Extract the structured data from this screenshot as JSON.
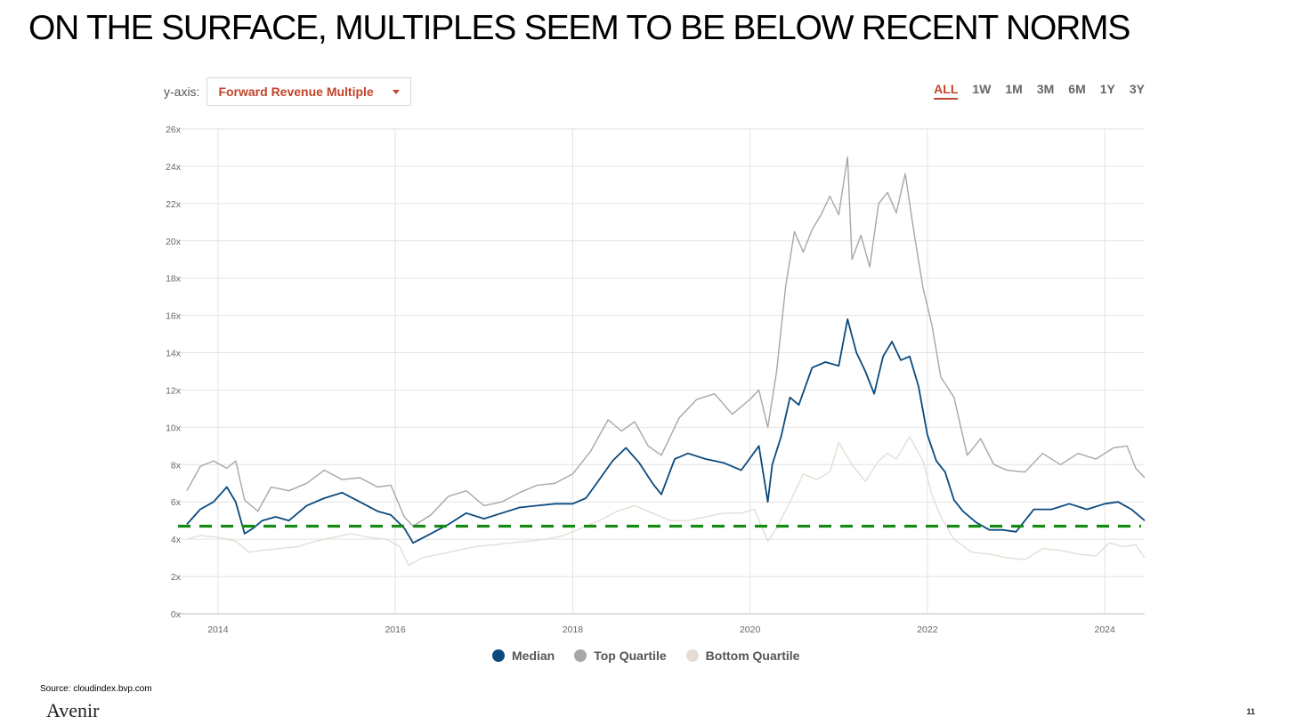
{
  "slide": {
    "title": "ON THE SURFACE, MULTIPLES SEEM TO BE BELOW RECENT NORMS",
    "source": "Source: cloudindex.bvp.com",
    "brand": "Avenir",
    "page_number": "11"
  },
  "controls": {
    "yaxis_label": "y-axis:",
    "dropdown_value": "Forward Revenue Multiple",
    "ranges": [
      "ALL",
      "1W",
      "1M",
      "3M",
      "6M",
      "1Y",
      "3Y"
    ],
    "active_range": "ALL"
  },
  "colors": {
    "median": "#0b4a7e",
    "top": "#a7a7a7",
    "bottom": "#e5ddd4",
    "reference": "#148c14",
    "grid": "#e2e2e2",
    "accent": "#c0452b"
  },
  "chart_data": {
    "type": "line",
    "title": "",
    "xlabel": "",
    "ylabel": "Forward Revenue Multiple",
    "xlim": [
      2013.65,
      2024.45
    ],
    "ylim": [
      0,
      26
    ],
    "y_ticks": [
      0,
      2,
      4,
      6,
      8,
      10,
      12,
      14,
      16,
      18,
      20,
      22,
      24,
      26
    ],
    "y_tick_labels": [
      "0x",
      "2x",
      "4x",
      "6x",
      "8x",
      "10x",
      "12x",
      "14x",
      "16x",
      "18x",
      "20x",
      "22x",
      "24x",
      "26x"
    ],
    "x_ticks": [
      2014,
      2016,
      2018,
      2020,
      2022,
      2024
    ],
    "x_tick_labels": [
      "2014",
      "2016",
      "2018",
      "2020",
      "2022",
      "2024"
    ],
    "grid": true,
    "legend_position": "bottom",
    "reference_line": {
      "y": 4.7,
      "style": "dashed"
    },
    "series": [
      {
        "name": "Median",
        "x": [
          2013.65,
          2013.8,
          2013.95,
          2014.1,
          2014.2,
          2014.3,
          2014.4,
          2014.5,
          2014.65,
          2014.8,
          2015.0,
          2015.2,
          2015.4,
          2015.6,
          2015.8,
          2015.95,
          2016.1,
          2016.2,
          2016.4,
          2016.6,
          2016.8,
          2017.0,
          2017.2,
          2017.4,
          2017.6,
          2017.8,
          2018.0,
          2018.15,
          2018.3,
          2018.45,
          2018.6,
          2018.75,
          2018.9,
          2019.0,
          2019.15,
          2019.3,
          2019.5,
          2019.7,
          2019.9,
          2020.1,
          2020.2,
          2020.25,
          2020.35,
          2020.45,
          2020.55,
          2020.7,
          2020.85,
          2021.0,
          2021.1,
          2021.2,
          2021.3,
          2021.4,
          2021.5,
          2021.6,
          2021.7,
          2021.8,
          2021.9,
          2022.0,
          2022.1,
          2022.2,
          2022.3,
          2022.4,
          2022.55,
          2022.7,
          2022.85,
          2023.0,
          2023.2,
          2023.4,
          2023.6,
          2023.8,
          2024.0,
          2024.15,
          2024.3,
          2024.45
        ],
        "values": [
          4.8,
          5.6,
          6.0,
          6.8,
          6.0,
          4.3,
          4.6,
          5.0,
          5.2,
          5.0,
          5.8,
          6.2,
          6.5,
          6.0,
          5.5,
          5.3,
          4.6,
          3.8,
          4.3,
          4.8,
          5.4,
          5.1,
          5.4,
          5.7,
          5.8,
          5.9,
          5.9,
          6.2,
          7.2,
          8.2,
          8.9,
          8.1,
          7.0,
          6.4,
          8.3,
          8.6,
          8.3,
          8.1,
          7.7,
          9.0,
          6.0,
          8.0,
          9.5,
          11.6,
          11.2,
          13.2,
          13.5,
          13.3,
          15.8,
          14.0,
          13.0,
          11.8,
          13.8,
          14.6,
          13.6,
          13.8,
          12.2,
          9.6,
          8.2,
          7.6,
          6.1,
          5.5,
          4.9,
          4.5,
          4.5,
          4.4,
          5.6,
          5.6,
          5.9,
          5.6,
          5.9,
          6.0,
          5.6,
          5.0
        ]
      },
      {
        "name": "Top Quartile",
        "x": [
          2013.65,
          2013.8,
          2013.95,
          2014.1,
          2014.2,
          2014.3,
          2014.45,
          2014.6,
          2014.8,
          2015.0,
          2015.2,
          2015.4,
          2015.6,
          2015.8,
          2015.95,
          2016.1,
          2016.2,
          2016.4,
          2016.6,
          2016.8,
          2017.0,
          2017.2,
          2017.4,
          2017.6,
          2017.8,
          2018.0,
          2018.2,
          2018.4,
          2018.55,
          2018.7,
          2018.85,
          2019.0,
          2019.2,
          2019.4,
          2019.6,
          2019.8,
          2020.0,
          2020.1,
          2020.2,
          2020.3,
          2020.4,
          2020.5,
          2020.6,
          2020.7,
          2020.8,
          2020.9,
          2021.0,
          2021.1,
          2021.15,
          2021.25,
          2021.35,
          2021.45,
          2021.55,
          2021.65,
          2021.75,
          2021.85,
          2021.95,
          2022.05,
          2022.15,
          2022.3,
          2022.45,
          2022.6,
          2022.75,
          2022.9,
          2023.1,
          2023.3,
          2023.5,
          2023.7,
          2023.9,
          2024.1,
          2024.25,
          2024.35,
          2024.45
        ],
        "values": [
          6.6,
          7.9,
          8.2,
          7.8,
          8.2,
          6.1,
          5.5,
          6.8,
          6.6,
          7.0,
          7.7,
          7.2,
          7.3,
          6.8,
          6.9,
          5.2,
          4.7,
          5.3,
          6.3,
          6.6,
          5.8,
          6.0,
          6.5,
          6.9,
          7.0,
          7.5,
          8.7,
          10.4,
          9.8,
          10.3,
          9.0,
          8.5,
          10.5,
          11.5,
          11.8,
          10.7,
          11.5,
          12.0,
          10.0,
          13.0,
          17.5,
          20.5,
          19.4,
          20.6,
          21.4,
          22.4,
          21.4,
          24.5,
          19.0,
          20.3,
          18.6,
          22.0,
          22.6,
          21.5,
          23.6,
          20.4,
          17.5,
          15.5,
          12.7,
          11.6,
          8.5,
          9.4,
          8.0,
          7.7,
          7.6,
          8.6,
          8.0,
          8.6,
          8.3,
          8.9,
          9.0,
          7.8,
          7.3
        ]
      },
      {
        "name": "Bottom Quartile",
        "x": [
          2013.65,
          2013.8,
          2014.0,
          2014.2,
          2014.35,
          2014.5,
          2014.7,
          2014.9,
          2015.1,
          2015.3,
          2015.5,
          2015.7,
          2015.9,
          2016.05,
          2016.15,
          2016.3,
          2016.5,
          2016.7,
          2016.9,
          2017.1,
          2017.3,
          2017.5,
          2017.7,
          2017.9,
          2018.1,
          2018.3,
          2018.5,
          2018.7,
          2018.9,
          2019.1,
          2019.3,
          2019.5,
          2019.7,
          2019.9,
          2020.05,
          2020.2,
          2020.3,
          2020.45,
          2020.6,
          2020.75,
          2020.9,
          2021.0,
          2021.15,
          2021.3,
          2021.45,
          2021.55,
          2021.65,
          2021.8,
          2021.95,
          2022.05,
          2022.15,
          2022.3,
          2022.5,
          2022.7,
          2022.9,
          2023.1,
          2023.3,
          2023.5,
          2023.7,
          2023.9,
          2024.05,
          2024.2,
          2024.35,
          2024.45
        ],
        "values": [
          4.0,
          4.2,
          4.1,
          3.9,
          3.3,
          3.4,
          3.5,
          3.6,
          3.9,
          4.1,
          4.3,
          4.1,
          4.0,
          3.6,
          2.6,
          3.0,
          3.2,
          3.4,
          3.6,
          3.7,
          3.8,
          3.9,
          4.0,
          4.2,
          4.6,
          5.0,
          5.5,
          5.8,
          5.4,
          5.0,
          5.0,
          5.2,
          5.4,
          5.4,
          5.6,
          3.9,
          4.6,
          6.0,
          7.5,
          7.2,
          7.6,
          9.2,
          8.0,
          7.1,
          8.2,
          8.6,
          8.3,
          9.5,
          8.2,
          6.4,
          5.2,
          4.0,
          3.3,
          3.2,
          3.0,
          2.9,
          3.5,
          3.4,
          3.2,
          3.1,
          3.8,
          3.6,
          3.7,
          3.0
        ]
      }
    ]
  }
}
